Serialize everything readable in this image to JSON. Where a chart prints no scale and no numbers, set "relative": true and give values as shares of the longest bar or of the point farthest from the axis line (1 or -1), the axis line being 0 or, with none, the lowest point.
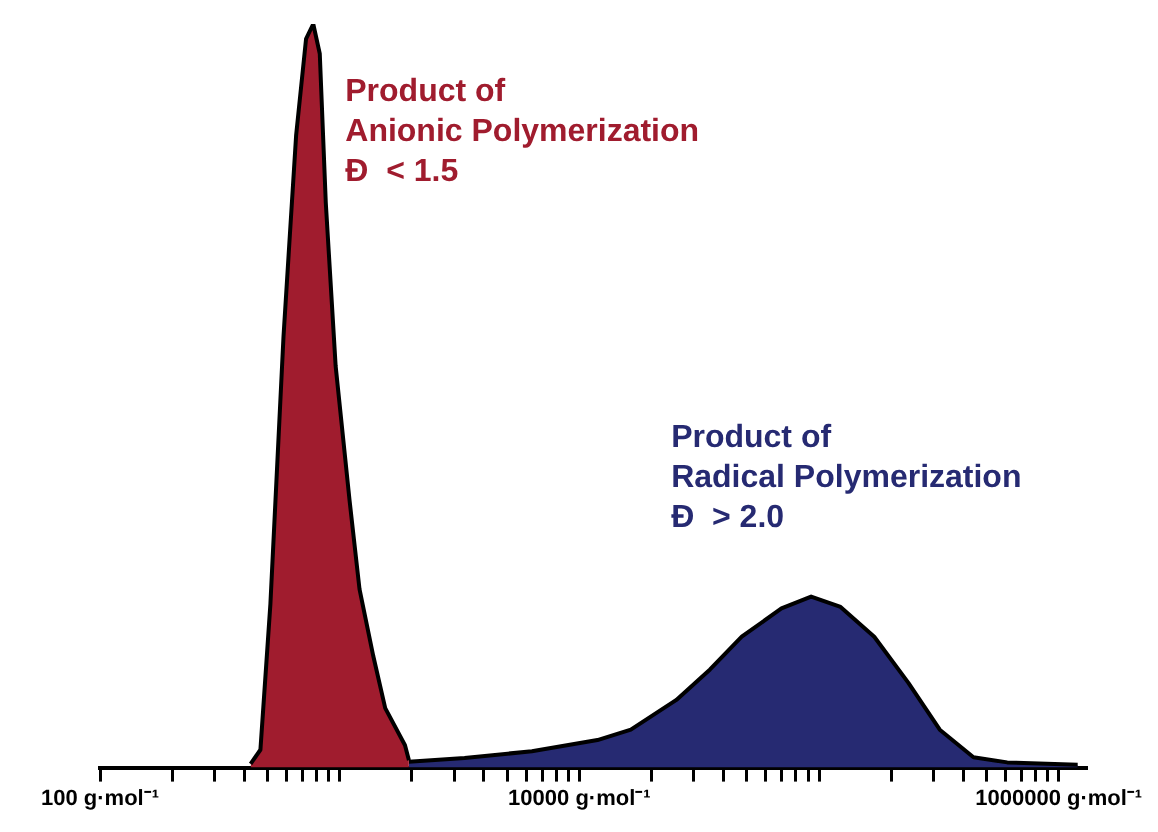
{
  "chart_data": {
    "type": "area",
    "relative": true,
    "log": "x",
    "legend": false,
    "grid": false,
    "xlim": [
      100,
      1300000
    ],
    "xticks": [
      {
        "value": 100,
        "label": "100 g·mol⁻¹"
      },
      {
        "value": 200,
        "label": null
      },
      {
        "value": 300,
        "label": null
      },
      {
        "value": 400,
        "label": null
      },
      {
        "value": 500,
        "label": null
      },
      {
        "value": 600,
        "label": null
      },
      {
        "value": 700,
        "label": null
      },
      {
        "value": 800,
        "label": null
      },
      {
        "value": 900,
        "label": null
      },
      {
        "value": 1000,
        "label": null
      },
      {
        "value": 2000,
        "label": null
      },
      {
        "value": 3000,
        "label": null
      },
      {
        "value": 4000,
        "label": null
      },
      {
        "value": 5000,
        "label": null
      },
      {
        "value": 6000,
        "label": null
      },
      {
        "value": 7000,
        "label": null
      },
      {
        "value": 8000,
        "label": null
      },
      {
        "value": 9000,
        "label": null
      },
      {
        "value": 10000,
        "label": "10000 g·mol⁻¹"
      },
      {
        "value": 20000,
        "label": null
      },
      {
        "value": 30000,
        "label": null
      },
      {
        "value": 40000,
        "label": null
      },
      {
        "value": 50000,
        "label": null
      },
      {
        "value": 60000,
        "label": null
      },
      {
        "value": 70000,
        "label": null
      },
      {
        "value": 80000,
        "label": null
      },
      {
        "value": 90000,
        "label": null
      },
      {
        "value": 100000,
        "label": null
      },
      {
        "value": 200000,
        "label": null
      },
      {
        "value": 300000,
        "label": null
      },
      {
        "value": 400000,
        "label": null
      },
      {
        "value": 500000,
        "label": null
      },
      {
        "value": 600000,
        "label": null
      },
      {
        "value": 700000,
        "label": null
      },
      {
        "value": 800000,
        "label": null
      },
      {
        "value": 900000,
        "label": null
      },
      {
        "value": 1000000,
        "label": "1000000 g·mol⁻¹"
      }
    ],
    "series": [
      {
        "color": "#a01c2e",
        "x": [
          425,
          467,
          514,
          583,
          658,
          724,
          776,
          826,
          875,
          962,
          1099,
          1210,
          1381,
          1549,
          1873,
          1945
        ],
        "values": [
          0.005,
          0.024,
          0.22,
          0.58,
          0.85,
          0.98,
          1,
          0.96,
          0.76,
          0.54,
          0.36,
          0.24,
          0.15,
          0.08,
          0.03,
          0.01
        ]
      },
      {
        "color": "#262a72",
        "x": [
          1945,
          3320,
          6340,
          11900,
          16400,
          25400,
          35100,
          47600,
          69700,
          92700,
          123000,
          170000,
          236000,
          319000,
          441000,
          610000,
          1200000
        ],
        "values": [
          0.008,
          0.013,
          0.022,
          0.037,
          0.051,
          0.091,
          0.132,
          0.176,
          0.214,
          0.23,
          0.216,
          0.176,
          0.114,
          0.051,
          0.014,
          0.007,
          0.004
        ]
      }
    ],
    "annotations": [
      "Product of\nAnionic Polymerization\nĐ  < 1.5",
      "Product of\nRadical Polymerization\nĐ  > 2.0"
    ]
  }
}
